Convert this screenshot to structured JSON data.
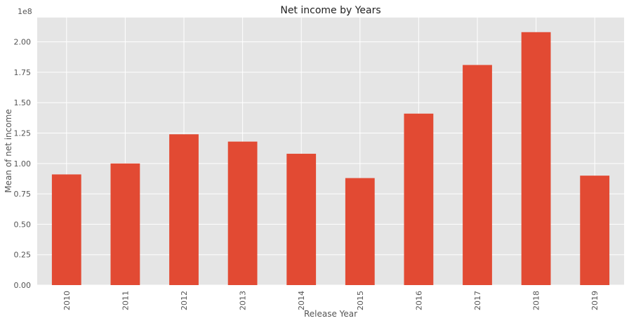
{
  "chart_data": {
    "type": "bar",
    "title": "Net income by Years",
    "xlabel": "Release Year",
    "ylabel": "Mean of net income",
    "scale_label": "1e8",
    "categories": [
      "2010",
      "2011",
      "2012",
      "2013",
      "2014",
      "2015",
      "2016",
      "2017",
      "2018",
      "2019"
    ],
    "values": [
      91000000,
      100000000,
      124000000,
      118000000,
      108000000,
      88000000,
      141000000,
      181000000,
      208000000,
      90000000
    ],
    "ylim": [
      0,
      220000000
    ],
    "yticks": [
      "0.00",
      "0.25",
      "0.50",
      "0.75",
      "1.00",
      "1.25",
      "1.50",
      "1.75",
      "2.00"
    ],
    "grid": true,
    "colors": {
      "bar": "#E24A33",
      "background": "#E5E5E5",
      "grid": "#FFFFFF"
    }
  }
}
